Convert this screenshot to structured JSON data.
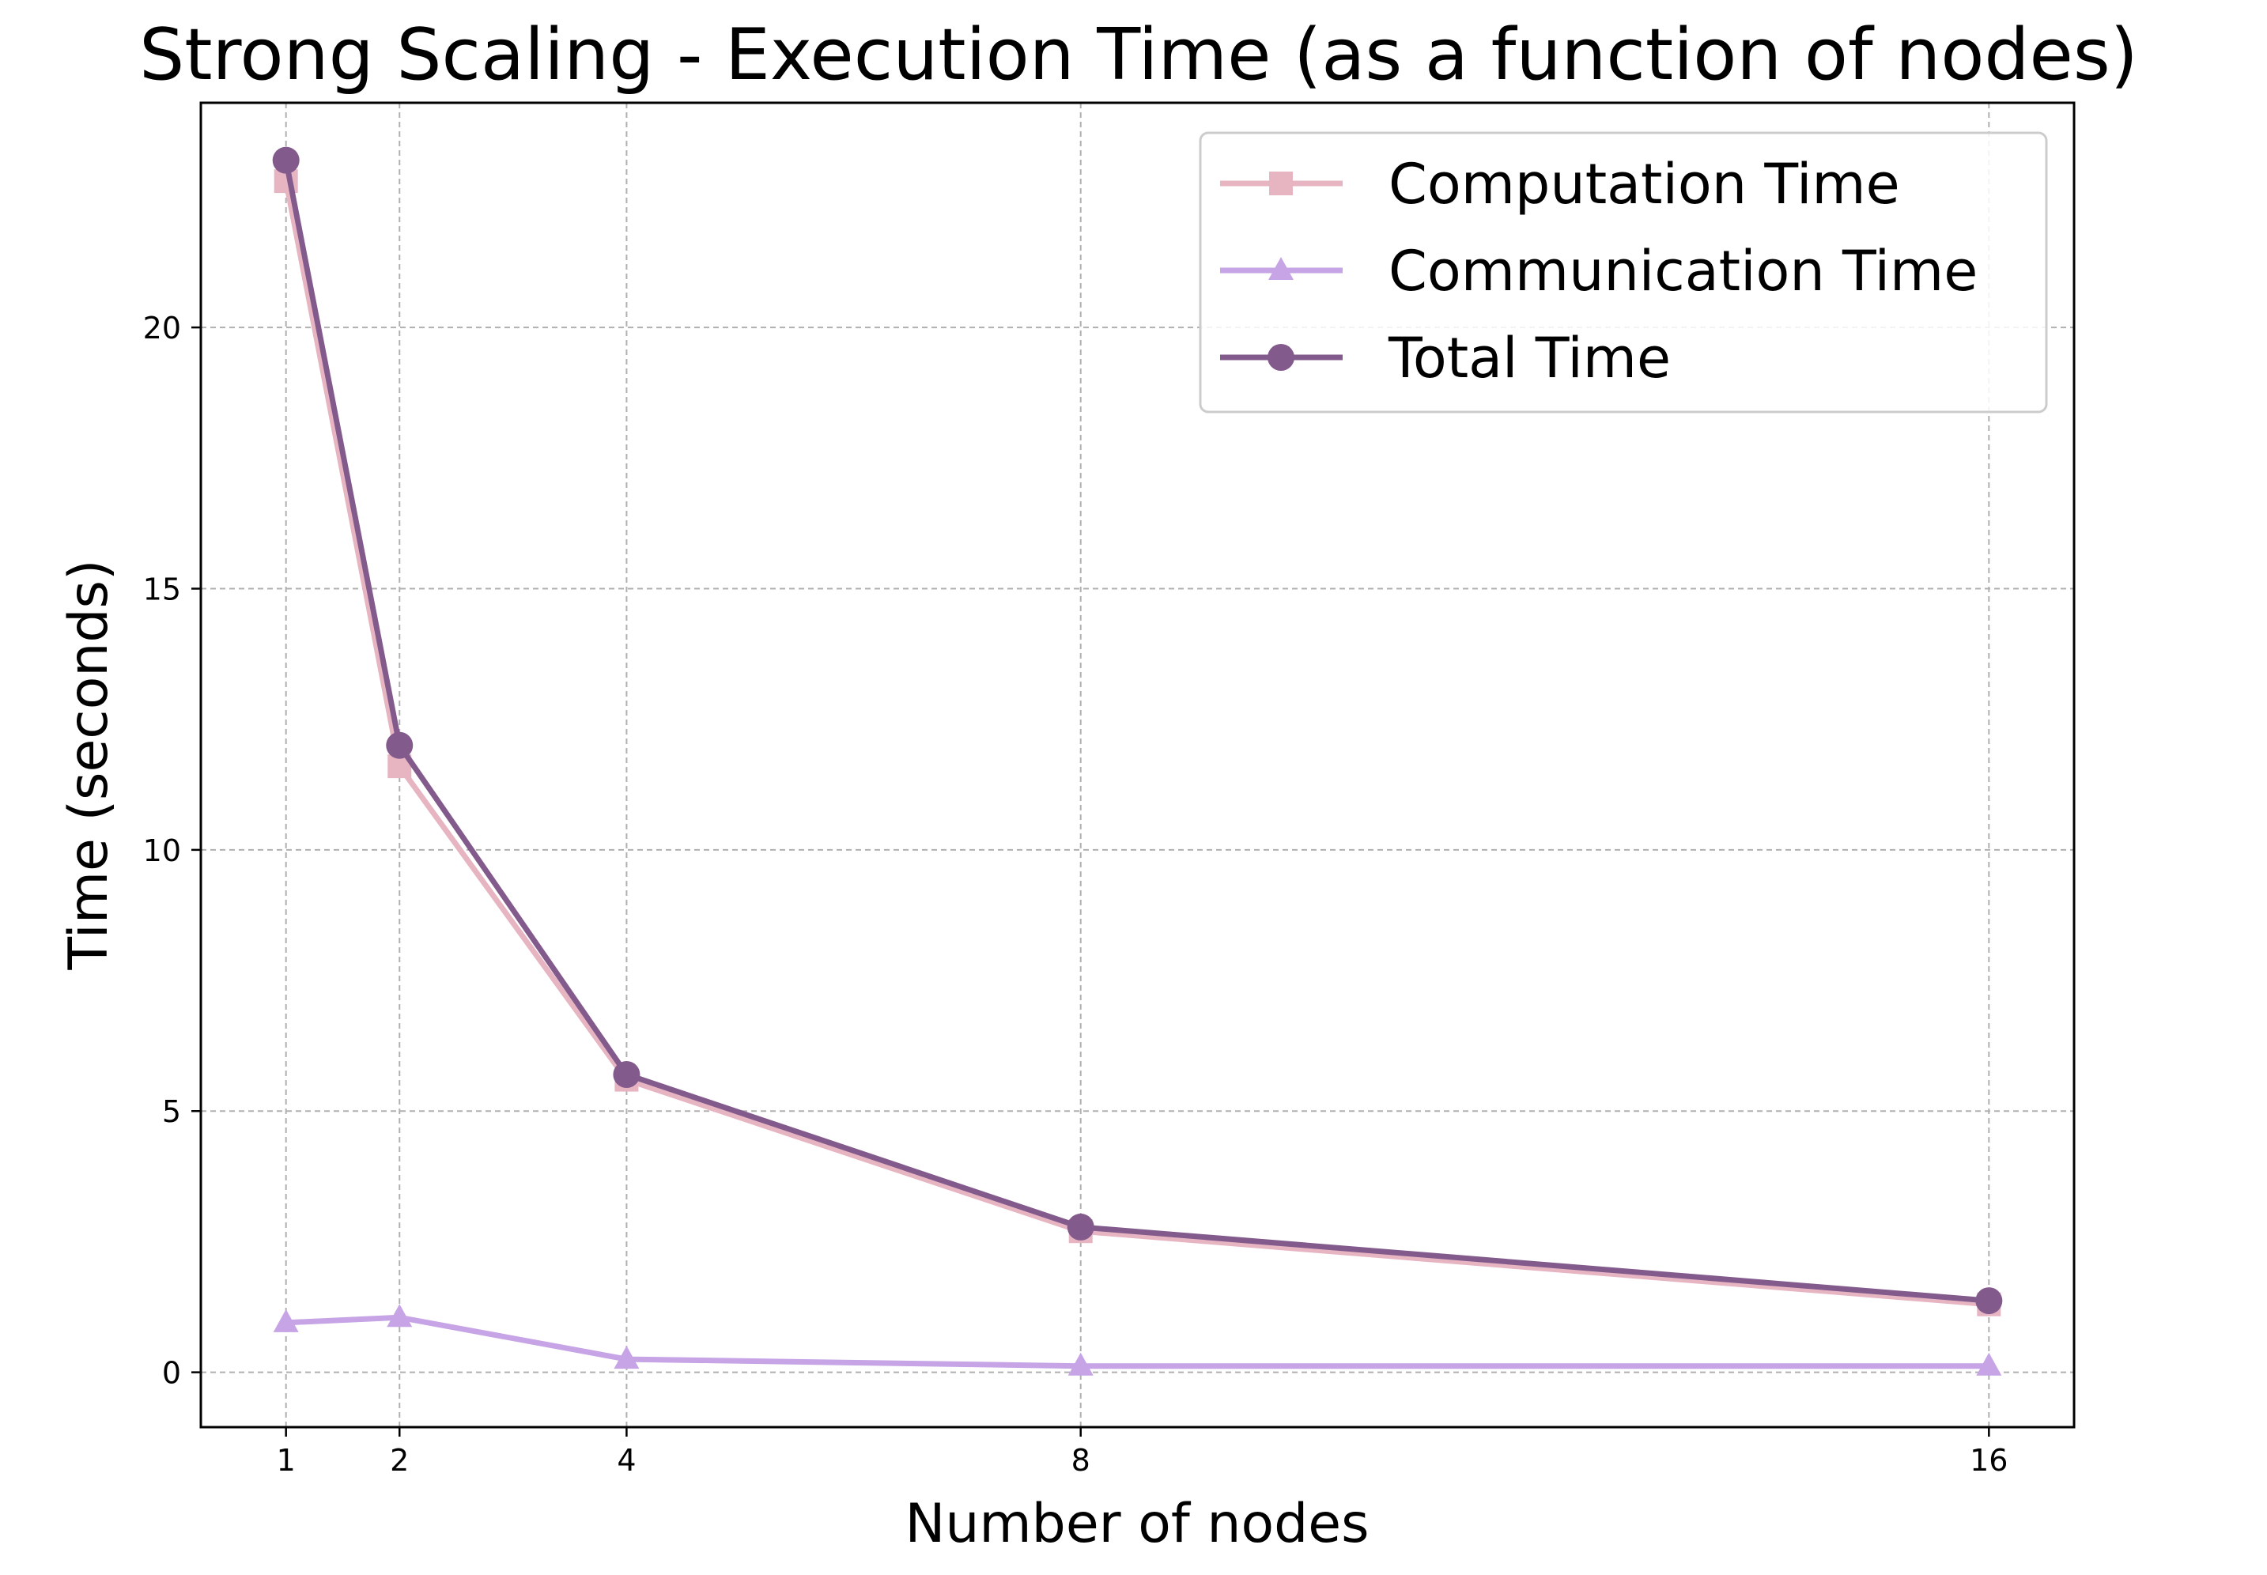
{
  "chart_data": {
    "type": "line",
    "title": "Strong Scaling - Execution Time (as a function of nodes)",
    "xlabel": "Number of nodes",
    "ylabel": "Time (seconds)",
    "x": [
      1,
      2,
      4,
      8,
      16
    ],
    "x_ticks": [
      "1",
      "2",
      "4",
      "8",
      "16"
    ],
    "xlim": [
      0.25,
      16.75
    ],
    "y_ticks": [
      0,
      5,
      10,
      15,
      20
    ],
    "ylim": [
      -1.05,
      24.3
    ],
    "grid": true,
    "legend_position": "top-right",
    "series": [
      {
        "name": "Computation Time",
        "values": [
          22.8,
          11.6,
          5.6,
          2.7,
          1.3
        ],
        "color": "#e7b4c2",
        "marker": "square"
      },
      {
        "name": "Communication Time",
        "values": [
          0.95,
          1.05,
          0.25,
          0.12,
          0.12
        ],
        "color": "#c6a4e6",
        "marker": "triangle"
      },
      {
        "name": "Total Time",
        "values": [
          23.2,
          12.0,
          5.7,
          2.78,
          1.37
        ],
        "color": "#835a8c",
        "marker": "circle"
      }
    ]
  }
}
